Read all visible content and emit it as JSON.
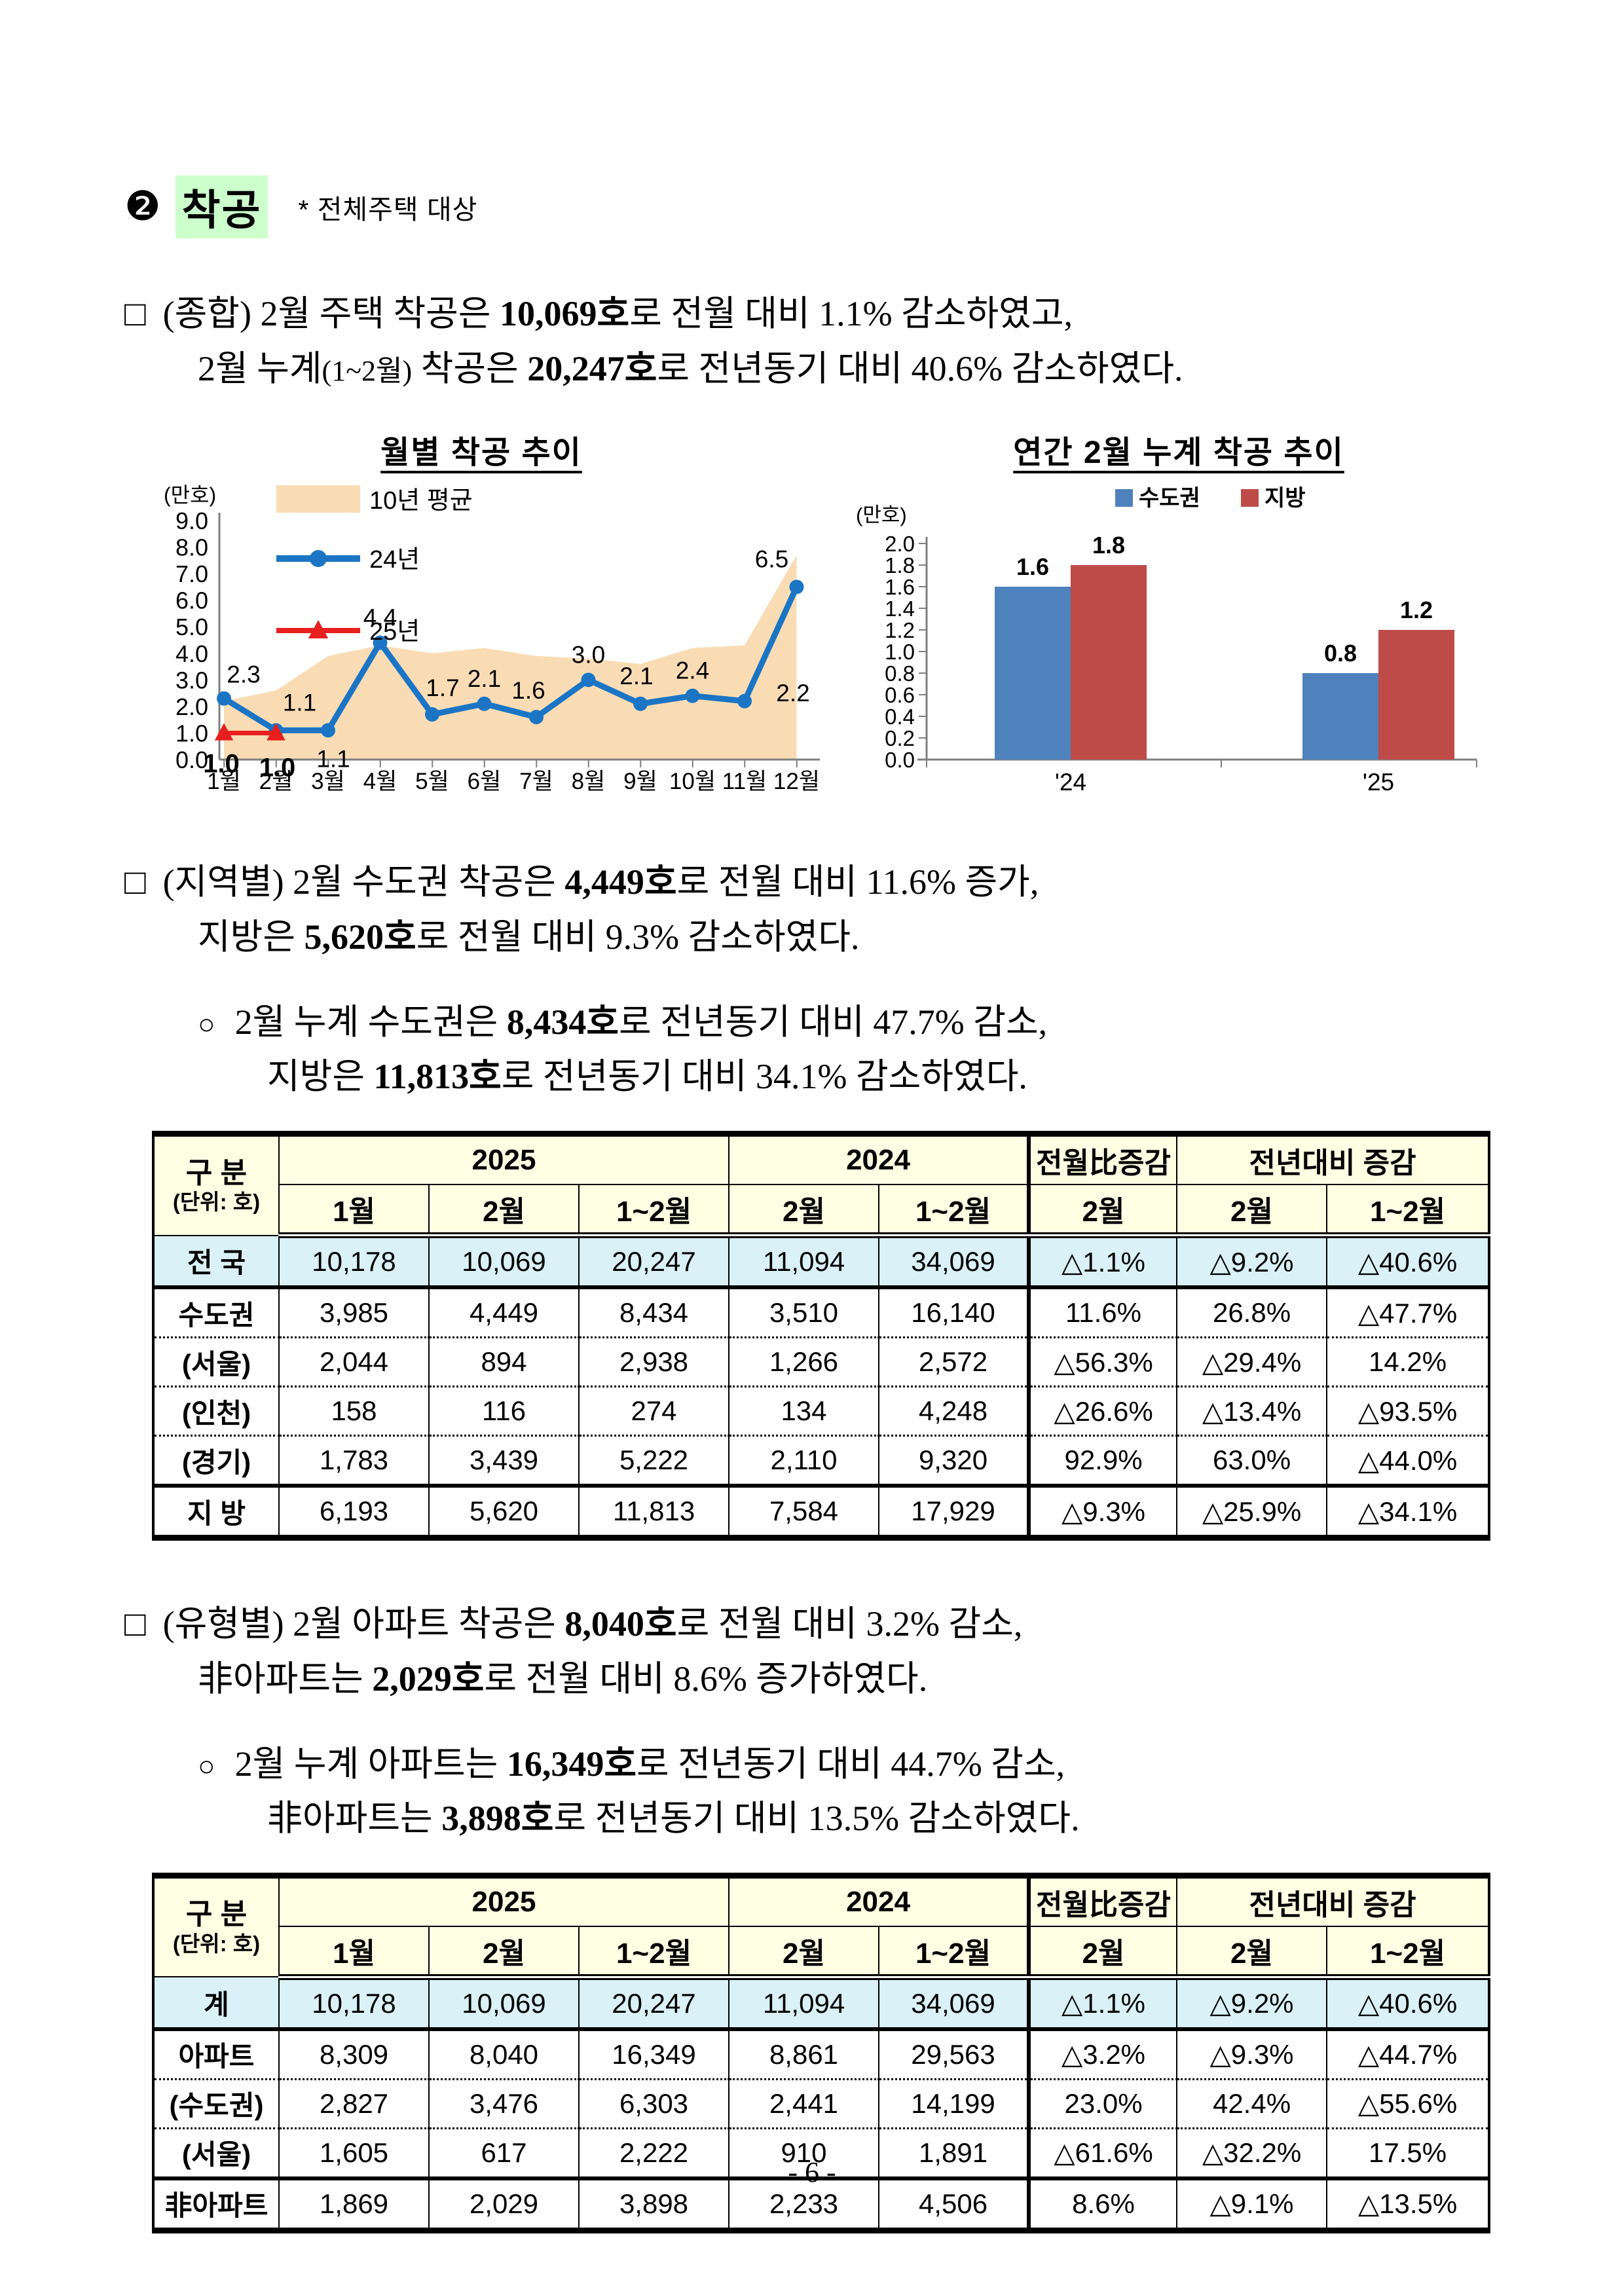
{
  "page": {
    "footer": "- 6 -"
  },
  "heading": {
    "badge": "❷",
    "title": "착공",
    "note": "* 전체주택 대상"
  },
  "sections": {
    "p1": {
      "bullet": "□",
      "lines": [
        [
          {
            "t": "(종합) 2월 주택 착공은 "
          },
          {
            "t": "10,069호",
            "b": 1
          },
          {
            "t": "로 전월 대비 1.1% 감소하였고,"
          }
        ],
        [
          {
            "t": "2월 누계"
          },
          {
            "t": "(1~2월)",
            "s": 1
          },
          {
            "t": " 착공은 "
          },
          {
            "t": "20,247호",
            "b": 1
          },
          {
            "t": "로 전년동기 대비 40.6% 감소하였다."
          }
        ]
      ]
    },
    "p2": {
      "bullet": "□",
      "lines": [
        [
          {
            "t": "(지역별) 2월 수도권 착공은 "
          },
          {
            "t": "4,449호",
            "b": 1
          },
          {
            "t": "로 전월 대비 11.6% 증가,"
          }
        ],
        [
          {
            "t": "지방은 "
          },
          {
            "t": "5,620호",
            "b": 1
          },
          {
            "t": "로 전월 대비 9.3% 감소하였다."
          }
        ]
      ]
    },
    "p2b": {
      "bullet": "○",
      "lines": [
        [
          {
            "t": "2월 누계 수도권은 "
          },
          {
            "t": "8,434호",
            "b": 1
          },
          {
            "t": "로 전년동기 대비 47.7% 감소,"
          }
        ],
        [
          {
            "t": "지방은 "
          },
          {
            "t": "11,813호",
            "b": 1
          },
          {
            "t": "로 전년동기 대비 34.1% 감소하였다."
          }
        ]
      ]
    },
    "p3": {
      "bullet": "□",
      "lines": [
        [
          {
            "t": "(유형별) 2월 아파트 착공은 "
          },
          {
            "t": "8,040호",
            "b": 1
          },
          {
            "t": "로 전월 대비 3.2% 감소,"
          }
        ],
        [
          {
            "t": "非아파트는 "
          },
          {
            "t": "2,029호",
            "b": 1
          },
          {
            "t": "로 전월 대비 8.6% 증가하였다."
          }
        ]
      ]
    },
    "p3b": {
      "bullet": "○",
      "lines": [
        [
          {
            "t": "2월 누계 아파트는 "
          },
          {
            "t": "16,349호",
            "b": 1
          },
          {
            "t": "로 전년동기 대비 44.7% 감소,"
          }
        ],
        [
          {
            "t": "非아파트는 "
          },
          {
            "t": "3,898호",
            "b": 1
          },
          {
            "t": "로 전년동기 대비 13.5% 감소하였다."
          }
        ]
      ]
    }
  },
  "tables": {
    "header": {
      "title": "구 분",
      "unit": "(단위: 호)",
      "g2025": "2025",
      "g2024": "2024",
      "prev": "전월比증감",
      "yoy": "전년대비 증감",
      "sub": [
        "1월",
        "2월",
        "1~2월",
        "2월",
        "1~2월",
        "2월",
        "2월",
        "1~2월"
      ]
    },
    "region": {
      "rows": [
        {
          "label": "전 국",
          "emphasis": true,
          "values": [
            "10,178",
            "10,069",
            "20,247",
            "11,094",
            "34,069",
            "△1.1%",
            "△9.2%",
            "△40.6%"
          ]
        },
        {
          "label": "수도권",
          "values": [
            "3,985",
            "4,449",
            "8,434",
            "3,510",
            "16,140",
            "11.6%",
            "26.8%",
            "△47.7%"
          ]
        },
        {
          "label": "(서울)",
          "values": [
            "2,044",
            "894",
            "2,938",
            "1,266",
            "2,572",
            "△56.3%",
            "△29.4%",
            "14.2%"
          ]
        },
        {
          "label": "(인천)",
          "values": [
            "158",
            "116",
            "274",
            "134",
            "4,248",
            "△26.6%",
            "△13.4%",
            "△93.5%"
          ]
        },
        {
          "label": "(경기)",
          "values": [
            "1,783",
            "3,439",
            "5,222",
            "2,110",
            "9,320",
            "92.9%",
            "63.0%",
            "△44.0%"
          ]
        },
        {
          "label": "지 방",
          "values": [
            "6,193",
            "5,620",
            "11,813",
            "7,584",
            "17,929",
            "△9.3%",
            "△25.9%",
            "△34.1%"
          ]
        }
      ]
    },
    "type": {
      "rows": [
        {
          "label": "계",
          "emphasis": true,
          "values": [
            "10,178",
            "10,069",
            "20,247",
            "11,094",
            "34,069",
            "△1.1%",
            "△9.2%",
            "△40.6%"
          ]
        },
        {
          "label": "아파트",
          "values": [
            "8,309",
            "8,040",
            "16,349",
            "8,861",
            "29,563",
            "△3.2%",
            "△9.3%",
            "△44.7%"
          ]
        },
        {
          "label": "(수도권)",
          "values": [
            "2,827",
            "3,476",
            "6,303",
            "2,441",
            "14,199",
            "23.0%",
            "42.4%",
            "△55.6%"
          ]
        },
        {
          "label": "(서울)",
          "values": [
            "1,605",
            "617",
            "2,222",
            "910",
            "1,891",
            "△61.6%",
            "△32.2%",
            "17.5%"
          ]
        },
        {
          "label": "非아파트",
          "values": [
            "1,869",
            "2,029",
            "3,898",
            "2,233",
            "4,506",
            "8.6%",
            "△9.1%",
            "△13.5%"
          ]
        }
      ]
    }
  },
  "chart_data": [
    {
      "type": "line",
      "title": "월별 착공 추이",
      "unit_label": "(만호)",
      "categories": [
        "1월",
        "2월",
        "3월",
        "4월",
        "5월",
        "6월",
        "7월",
        "8월",
        "9월",
        "10월",
        "11월",
        "12월"
      ],
      "ylim": [
        0,
        9.0
      ],
      "ytick_step": 1.0,
      "grid": false,
      "legend_position": "top-left",
      "series": [
        {
          "name": "10년 평균",
          "kind": "area",
          "color": "#fadcb4",
          "values": [
            2.2,
            2.6,
            3.9,
            4.3,
            4.0,
            4.2,
            3.9,
            3.8,
            3.6,
            4.2,
            4.3,
            7.7
          ]
        },
        {
          "name": "24년",
          "kind": "line",
          "marker": "circle",
          "color": "#1b75c4",
          "show_labels": true,
          "values": [
            2.3,
            1.1,
            1.1,
            4.4,
            1.7,
            2.1,
            1.6,
            3.0,
            2.1,
            2.4,
            2.2,
            6.5
          ]
        },
        {
          "name": "25년",
          "kind": "line",
          "marker": "triangle",
          "color": "#e81f1f",
          "show_labels": true,
          "values": [
            1.0,
            1.0
          ]
        }
      ]
    },
    {
      "type": "bar",
      "title": "연간 2월 누계 착공 추이",
      "unit_label": "(만호)",
      "categories": [
        "'24",
        "'25"
      ],
      "ylim": [
        0,
        2.0
      ],
      "ytick_step": 0.2,
      "grid": false,
      "legend_position": "top",
      "series": [
        {
          "name": "수도권",
          "color": "#4f81bd",
          "values": [
            1.6,
            0.8
          ]
        },
        {
          "name": "지방",
          "color": "#be4b48",
          "values": [
            1.8,
            1.2
          ]
        }
      ]
    }
  ]
}
